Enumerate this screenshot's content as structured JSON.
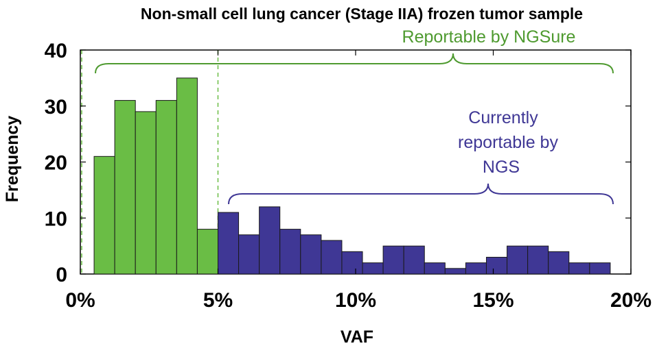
{
  "chart_data": {
    "type": "bar",
    "title": "Non-small cell lung cancer (Stage IIA) frozen tumor sample",
    "xlabel": "VAF",
    "ylabel": "Frequency",
    "xlim": [
      0,
      20
    ],
    "ylim": [
      0,
      40
    ],
    "x_ticks": [
      {
        "value": 0,
        "label": "0%"
      },
      {
        "value": 5,
        "label": "5%"
      },
      {
        "value": 10,
        "label": "10%"
      },
      {
        "value": 15,
        "label": "15%"
      },
      {
        "value": 20,
        "label": "20%"
      }
    ],
    "y_ticks": [
      {
        "value": 0,
        "label": "0"
      },
      {
        "value": 10,
        "label": "10"
      },
      {
        "value": 20,
        "label": "20"
      },
      {
        "value": 30,
        "label": "30"
      },
      {
        "value": 40,
        "label": "40"
      }
    ],
    "grid": false,
    "bin_width": 0.75,
    "series": [
      {
        "color": "#6ABD45",
        "bin_starts": [
          0.5,
          1.25,
          2.0,
          2.75,
          3.5,
          4.25
        ],
        "values": [
          21,
          31,
          29,
          31,
          35,
          8
        ]
      },
      {
        "color": "#3F3795",
        "bin_starts": [
          5.0,
          5.75,
          6.5,
          7.25,
          8.0,
          8.75,
          9.5,
          10.25,
          11.0,
          11.75,
          12.5,
          13.25,
          14.0,
          14.75,
          15.5,
          16.25,
          17.0,
          17.75,
          18.5
        ],
        "values": [
          11,
          7,
          12,
          8,
          7,
          6,
          4,
          2,
          5,
          5,
          2,
          1,
          2,
          3,
          5,
          5,
          4,
          2,
          2
        ]
      }
    ],
    "reference_lines": [
      {
        "x": 0.05,
        "color": "#6ABD45",
        "style": "dashed"
      },
      {
        "x": 5.0,
        "color": "#6ABD45",
        "style": "dashed"
      }
    ],
    "annotations": [
      {
        "text": "Reportable by NGSure",
        "color": "#4E9A2F",
        "span": [
          0.5,
          19.25
        ]
      },
      {
        "lines": [
          "Currently",
          "reportable by",
          "NGS"
        ],
        "color": "#3F3795",
        "span": [
          5.4,
          19.25
        ]
      }
    ]
  }
}
